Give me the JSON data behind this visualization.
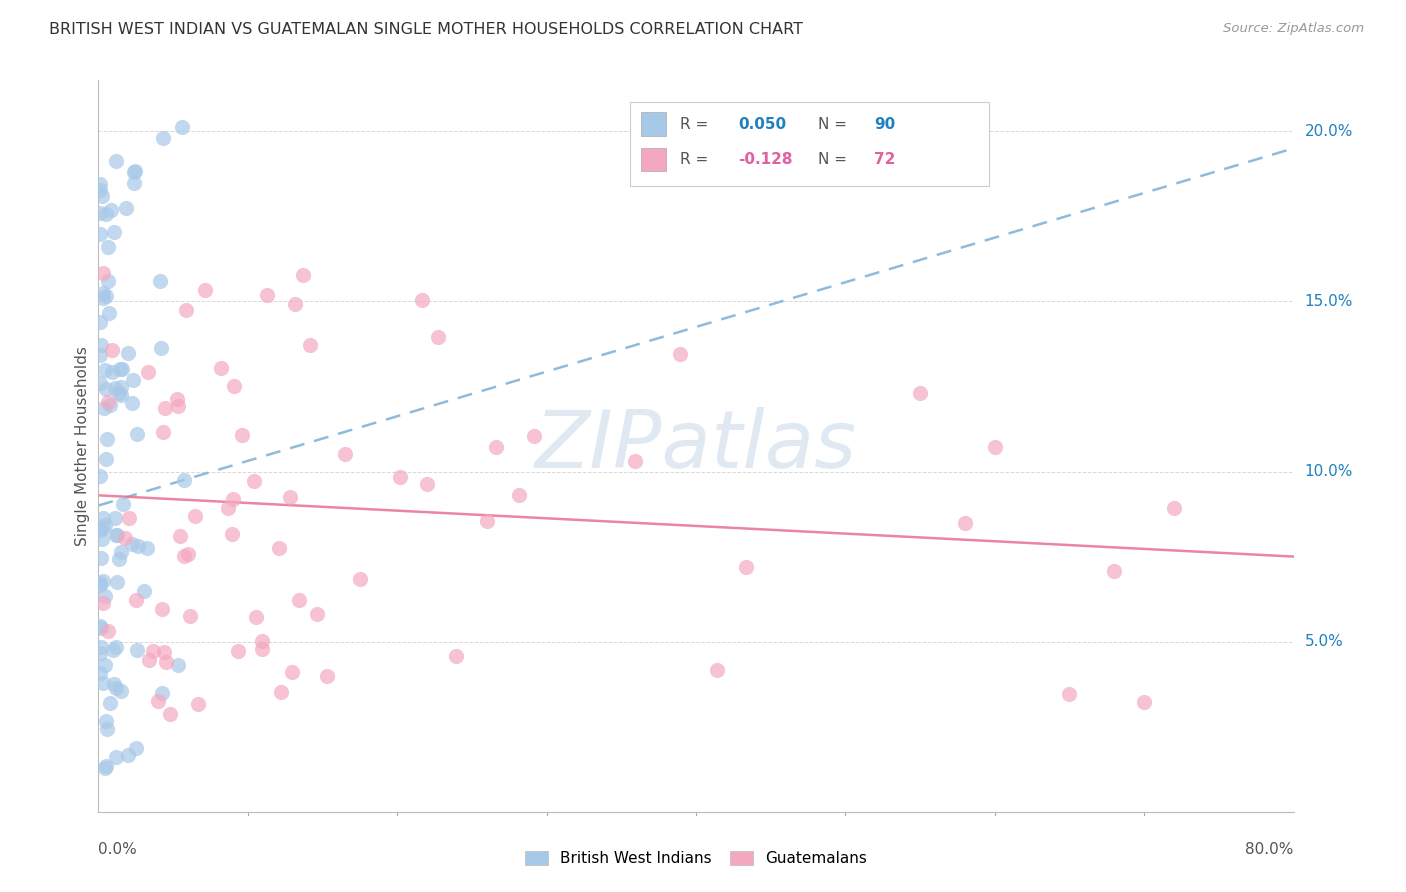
{
  "title": "BRITISH WEST INDIAN VS GUATEMALAN SINGLE MOTHER HOUSEHOLDS CORRELATION CHART",
  "source": "Source: ZipAtlas.com",
  "ylabel": "Single Mother Households",
  "right_yticks": [
    "20.0%",
    "15.0%",
    "10.0%",
    "5.0%"
  ],
  "right_ytick_vals": [
    0.2,
    0.15,
    0.1,
    0.05
  ],
  "xlim": [
    0.0,
    0.8
  ],
  "ylim": [
    0.0,
    0.215
  ],
  "color_blue": "#a8c8e8",
  "color_pink": "#f4a8c0",
  "color_blue_line": "#7ab0d8",
  "color_pink_line": "#e87090",
  "color_blue_text": "#2080c0",
  "color_pink_text": "#e060a0",
  "watermark": "ZIPatlas",
  "bwi_trend": [
    0.09,
    0.195
  ],
  "guat_trend": [
    0.093,
    0.075
  ]
}
